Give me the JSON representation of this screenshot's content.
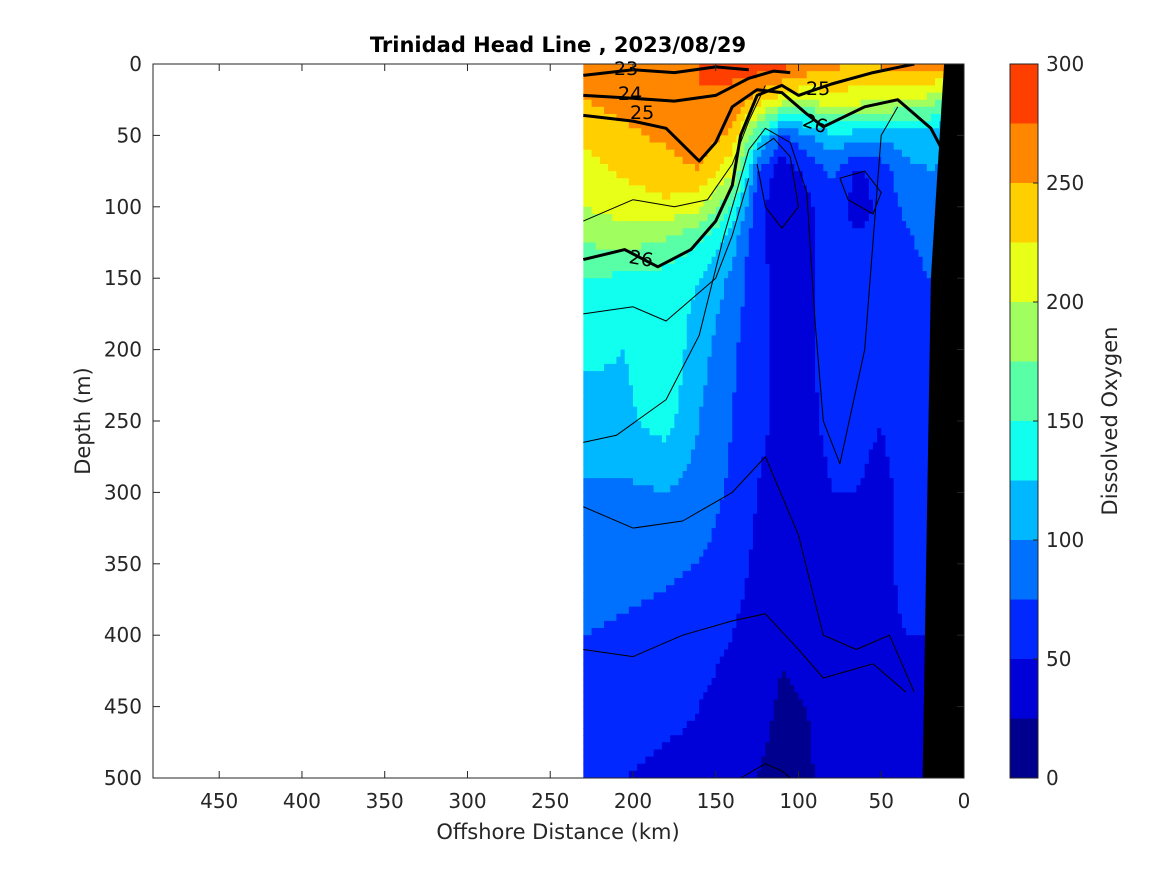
{
  "chart_data": {
    "type": "heatmap",
    "title": "Trinidad Head Line , 2023/08/29",
    "xlabel": "Offshore Distance (km)",
    "ylabel": "Depth (m)",
    "xlim": [
      490,
      0
    ],
    "ylim": [
      500,
      0
    ],
    "x_reversed": true,
    "y_reversed": true,
    "x_ticks": [
      450,
      400,
      350,
      300,
      250,
      200,
      150,
      100,
      50,
      0
    ],
    "y_ticks": [
      0,
      50,
      100,
      150,
      200,
      250,
      300,
      350,
      400,
      450,
      500
    ],
    "colorbar": {
      "label": "Dissolved Oxygen",
      "min": 0,
      "max": 300,
      "ticks": [
        0,
        50,
        100,
        150,
        200,
        250,
        300
      ],
      "levels": [
        0,
        25,
        50,
        75,
        100,
        125,
        150,
        175,
        200,
        225,
        250,
        275,
        300
      ],
      "colors": [
        "#00008f",
        "#0000d9",
        "#0028ff",
        "#0070ff",
        "#00b8ff",
        "#10ffef",
        "#58ff a7",
        "#a0ff5f",
        "#e8ff17",
        "#ffcf00",
        "#ff8700",
        "#ff3f00"
      ]
    },
    "grid": false,
    "data_extent_km": [
      0,
      230
    ],
    "isopycnal_labels": [
      "23",
      "24",
      "25",
      "25",
      "26",
      "26"
    ],
    "oxygen_field": {
      "x": [
        230,
        205,
        180,
        160,
        140,
        125,
        110,
        95,
        80,
        65,
        50,
        35,
        20,
        10
      ],
      "depths": [
        0,
        25,
        50,
        75,
        100,
        125,
        150,
        200,
        250,
        300,
        350,
        400,
        450,
        500
      ],
      "values": [
        [
          255,
          265,
          270,
          275,
          280,
          290,
          285,
          270,
          255,
          250,
          255,
          260,
          270,
          270
        ],
        [
          250,
          260,
          265,
          275,
          270,
          240,
          215,
          200,
          220,
          210,
          205,
          200,
          190,
          160
        ],
        [
          230,
          245,
          255,
          265,
          245,
          150,
          70,
          95,
          120,
          115,
          110,
          110,
          110,
          100
        ],
        [
          215,
          230,
          240,
          250,
          205,
          75,
          35,
          55,
          80,
          45,
          60,
          95,
          100,
          95
        ],
        [
          200,
          210,
          220,
          205,
          150,
          60,
          30,
          45,
          65,
          40,
          55,
          80,
          95,
          90
        ],
        [
          175,
          185,
          170,
          150,
          110,
          55,
          40,
          45,
          60,
          55,
          55,
          70,
          85,
          85
        ],
        [
          150,
          145,
          140,
          125,
          95,
          55,
          45,
          45,
          60,
          60,
          55,
          65,
          75,
          80
        ],
        [
          130,
          125,
          145,
          110,
          80,
          55,
          45,
          45,
          60,
          60,
          55,
          60,
          70,
          75
        ],
        [
          115,
          120,
          135,
          100,
          75,
          55,
          45,
          45,
          55,
          55,
          50,
          60,
          65,
          70
        ],
        [
          95,
          95,
          100,
          90,
          70,
          50,
          40,
          40,
          50,
          50,
          45,
          55,
          60,
          65
        ],
        [
          90,
          85,
          80,
          75,
          60,
          45,
          40,
          40,
          45,
          50,
          45,
          55,
          55,
          60
        ],
        [
          75,
          70,
          65,
          55,
          50,
          40,
          30,
          35,
          40,
          45,
          45,
          50,
          50,
          55
        ],
        [
          65,
          60,
          55,
          50,
          45,
          35,
          20,
          25,
          40,
          40,
          45,
          45,
          50,
          50
        ],
        [
          60,
          50,
          45,
          45,
          40,
          25,
          15,
          20,
          35,
          40,
          40,
          45,
          45,
          50
        ]
      ]
    },
    "bathymetry": {
      "x": [
        12,
        20,
        25,
        0
      ],
      "depth": [
        0,
        150,
        500,
        500
      ]
    }
  }
}
